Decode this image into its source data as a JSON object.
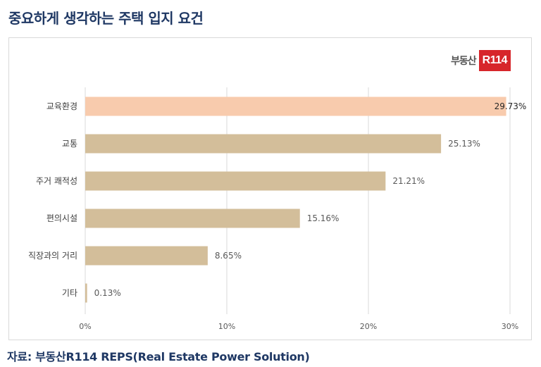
{
  "page": {
    "title": "중요하게 생각하는 주택 입지 요건",
    "source": "자료: 부동산R114 REPS(Real Estate Power Solution)"
  },
  "logo": {
    "text": "부동산",
    "badge": "R114",
    "badge_color": "#d7262b"
  },
  "chart_data": {
    "type": "bar",
    "orientation": "horizontal",
    "categories": [
      "교육환경",
      "교통",
      "주거 쾌적성",
      "편의시설",
      "직장과의 거리",
      "기타"
    ],
    "values": [
      29.73,
      25.13,
      21.21,
      15.16,
      8.65,
      0.13
    ],
    "data_labels": [
      "29.73%",
      "25.13%",
      "21.21%",
      "15.16%",
      "8.65%",
      "0.13%"
    ],
    "xlim": [
      0,
      30
    ],
    "x_ticks": [
      0,
      10,
      20,
      30
    ],
    "x_tick_labels": [
      "0%",
      "10%",
      "20%",
      "30%"
    ],
    "grid": "vertical",
    "colors": {
      "highlight": "#f8cbad",
      "default": "#d3be9a",
      "grid": "#d9d9d9"
    },
    "highlight_index": 0
  }
}
